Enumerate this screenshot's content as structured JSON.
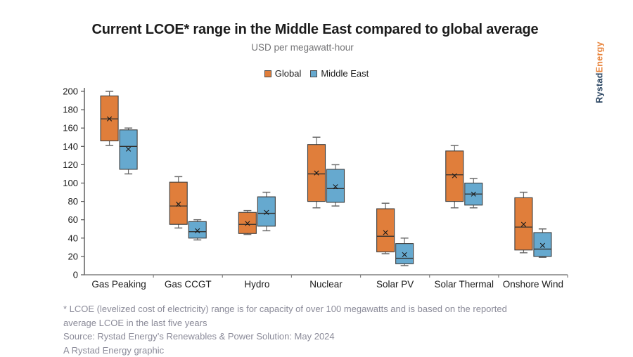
{
  "title": "Current LCOE* range in the Middle East compared to global average",
  "subtitle": "USD per megawatt-hour",
  "legend": {
    "items": [
      {
        "label": "Global",
        "color": "#E07E3B"
      },
      {
        "label": "Middle East",
        "color": "#66A9CF"
      }
    ]
  },
  "logo": {
    "part1": "Rystad",
    "part1_color": "#27425F",
    "part2": "Energy",
    "part2_color": "#E8833A"
  },
  "footnotes": [
    "* LCOE (levelized cost of electricity) range is for capacity of over 100 megawatts and is based on the reported",
    "average LCOE in the last five years",
    "Source: Rystad Energy’s Renewables & Power Solution: May 2024",
    "A Rystad Energy graphic"
  ],
  "chart_data": {
    "type": "boxplot",
    "title": "Current LCOE* range in the Middle East compared to global average",
    "subtitle": "USD per megawatt-hour",
    "ylabel": "USD per megawatt-hour",
    "ylim": [
      0,
      200
    ],
    "ytick_step": 20,
    "grid": false,
    "legend_position": "top-center",
    "mean_marker": "x",
    "categories": [
      "Gas Peaking",
      "Gas CCGT",
      "Hydro",
      "Nuclear",
      "Solar PV",
      "Solar Thermal",
      "Onshore Wind"
    ],
    "series": [
      {
        "name": "Global",
        "color": "#E07E3B",
        "values": [
          {
            "low": 141,
            "q1": 146,
            "median": 170,
            "mean": 170,
            "q3": 195,
            "high": 200
          },
          {
            "low": 51,
            "q1": 55,
            "median": 75,
            "mean": 77,
            "q3": 101,
            "high": 107
          },
          {
            "low": 44,
            "q1": 45,
            "median": 55,
            "mean": 56,
            "q3": 68,
            "high": 70
          },
          {
            "low": 73,
            "q1": 80,
            "median": 110,
            "mean": 111,
            "q3": 142,
            "high": 150
          },
          {
            "low": 23,
            "q1": 25,
            "median": 42,
            "mean": 46,
            "q3": 72,
            "high": 78
          },
          {
            "low": 73,
            "q1": 80,
            "median": 109,
            "mean": 108,
            "q3": 135,
            "high": 141
          },
          {
            "low": 24,
            "q1": 27,
            "median": 52,
            "mean": 55,
            "q3": 84,
            "high": 90
          }
        ]
      },
      {
        "name": "Middle East",
        "color": "#66A9CF",
        "values": [
          {
            "low": 110,
            "q1": 115,
            "median": 140,
            "mean": 137,
            "q3": 158,
            "high": 160
          },
          {
            "low": 38,
            "q1": 40,
            "median": 47,
            "mean": 48,
            "q3": 58,
            "high": 60
          },
          {
            "low": 48,
            "q1": 53,
            "median": 67,
            "mean": 68,
            "q3": 85,
            "high": 90
          },
          {
            "low": 75,
            "q1": 79,
            "median": 94,
            "mean": 96,
            "q3": 115,
            "high": 120
          },
          {
            "low": 10,
            "q1": 12,
            "median": 18,
            "mean": 22,
            "q3": 34,
            "high": 40
          },
          {
            "low": 73,
            "q1": 76,
            "median": 88,
            "mean": 88,
            "q3": 100,
            "high": 105
          },
          {
            "low": 19,
            "q1": 20,
            "median": 28,
            "mean": 32,
            "q3": 46,
            "high": 50
          }
        ]
      }
    ]
  }
}
